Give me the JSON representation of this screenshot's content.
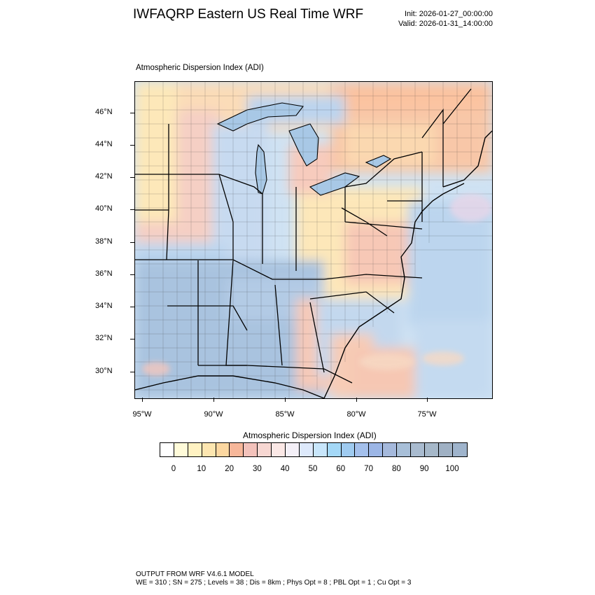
{
  "header": {
    "title": "IWFAQRP Eastern US Real Time WRF",
    "init": "Init: 2026-01-27_00:00:00",
    "valid": "Valid: 2026-01-31_14:00:00"
  },
  "map": {
    "field_label": "Atmospheric Dispersion Index   (ADI)",
    "lat_ticks": [
      "46°N",
      "44°N",
      "42°N",
      "40°N",
      "38°N",
      "36°N",
      "34°N",
      "32°N",
      "30°N"
    ],
    "lon_ticks": [
      "95°W",
      "90°W",
      "85°W",
      "80°W",
      "75°W"
    ],
    "colors": {
      "low_yellow": "#fdf2c4",
      "orange": "#f9c79a",
      "pink": "#f3b9b4",
      "blue_light": "#bcd6ef",
      "blue_mid": "#9dbde0",
      "blue_dark": "#a9c4e0"
    }
  },
  "colorbar": {
    "title": "Atmospheric Dispersion Index  (ADI)",
    "labels": [
      "0",
      "10",
      "20",
      "30",
      "40",
      "50",
      "60",
      "70",
      "80",
      "90",
      "100"
    ],
    "colors": [
      "#ffffff",
      "#fffbd9",
      "#fff2c2",
      "#fde6b0",
      "#fcd7a0",
      "#f7b79a",
      "#f3c2bb",
      "#f7d7d2",
      "#fbe8e6",
      "#f4f0f8",
      "#dde9fb",
      "#c8e6fb",
      "#a4d8f7",
      "#9fcbf0",
      "#a4c0ec",
      "#9cb6e6",
      "#a5b9dc",
      "#a8bfd8",
      "#a9bbcf",
      "#a6b8c9",
      "#a0b1c4",
      "#9fb4cc"
    ]
  },
  "footer": {
    "line1": "OUTPUT FROM WRF V4.6.1 MODEL",
    "line2": "WE = 310 ; SN = 275 ; Levels = 38 ; Dis = 8km ; Phys Opt = 8 ; PBL Opt = 1 ; Cu Opt = 3"
  }
}
